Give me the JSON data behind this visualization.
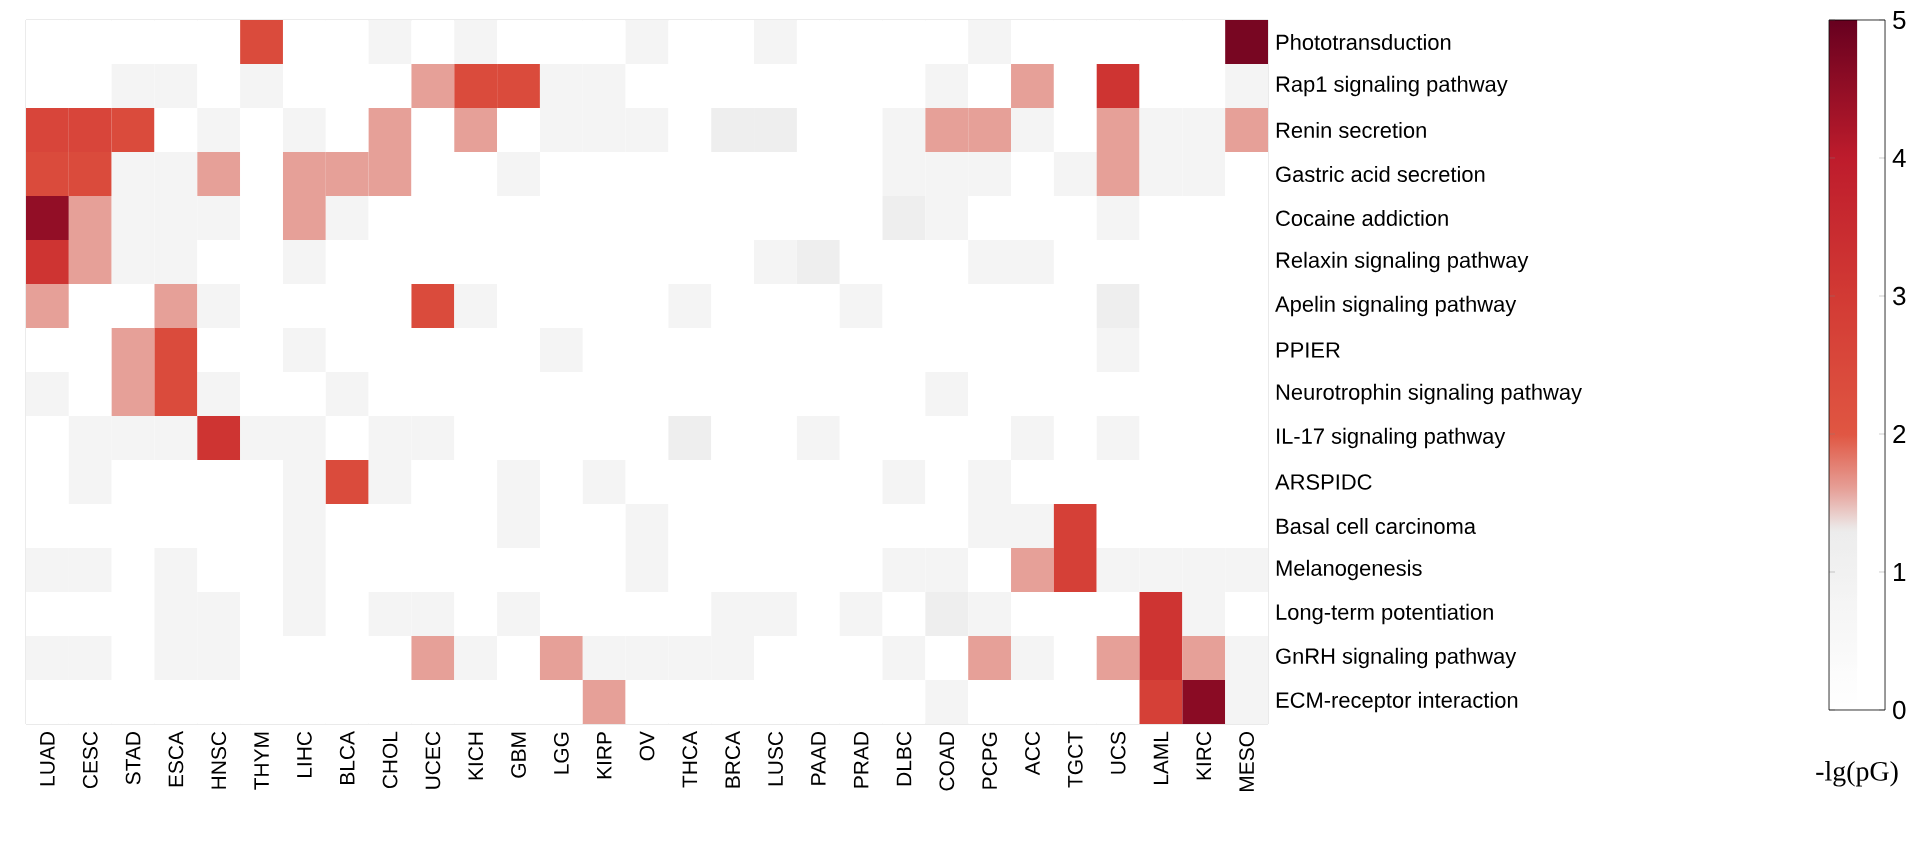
{
  "chart_data": {
    "type": "heatmap",
    "categories": [
      "LUAD",
      "CESC",
      "STAD",
      "ESCA",
      "HNSC",
      "THYM",
      "LIHC",
      "BLCA",
      "CHOL",
      "UCEC",
      "KICH",
      "GBM",
      "LGG",
      "KIRP",
      "OV",
      "THCA",
      "BRCA",
      "LUSC",
      "PAAD",
      "PRAD",
      "DLBC",
      "COAD",
      "PCPG",
      "ACC",
      "TGCT",
      "UCS",
      "LAML",
      "KIRC",
      "MESO"
    ],
    "y_categories": [
      "Phototransduction",
      "Rap1 signaling pathway",
      "Renin secretion",
      "Gastric acid secretion",
      "Cocaine addiction",
      "Relaxin signaling pathway",
      "Apelin signaling pathway",
      "PPIER",
      "Neurotrophin signaling pathway",
      "IL-17 signaling pathway",
      "ARSPIDC",
      "Basal cell carcinoma",
      "Melanogenesis",
      "Long-term potentiation",
      "GnRH signaling pathway",
      "ECM-receptor interaction"
    ],
    "cells": [
      [
        0,
        0,
        0,
        0,
        0,
        2.4,
        0,
        0,
        0.8,
        0,
        0.8,
        0,
        0,
        0,
        0.8,
        0,
        0,
        0.8,
        0,
        0,
        0,
        0,
        0.8,
        0,
        0,
        0,
        0,
        0,
        4.8
      ],
      [
        0,
        0,
        0.8,
        0.8,
        0,
        0.8,
        0,
        0,
        0,
        1.6,
        2.4,
        2.4,
        0.8,
        0.8,
        0,
        0,
        0,
        0,
        0,
        0,
        0,
        0.8,
        0,
        1.6,
        0,
        3.2,
        0,
        0,
        0.8
      ],
      [
        2.6,
        2.6,
        2.4,
        0,
        0.8,
        0,
        0.8,
        0,
        1.6,
        0,
        1.6,
        0,
        0.8,
        0.8,
        0.8,
        0,
        1.2,
        1.2,
        0,
        0,
        0.8,
        1.6,
        1.6,
        0.8,
        0,
        1.6,
        0.8,
        0.8,
        1.6
      ],
      [
        2.4,
        2.4,
        0.8,
        0.8,
        1.6,
        0,
        1.6,
        1.6,
        1.6,
        0,
        0,
        0.8,
        0,
        0,
        0,
        0,
        0,
        0,
        0,
        0,
        0.8,
        0.8,
        0.8,
        0,
        0.8,
        1.6,
        0.8,
        0.8,
        0
      ],
      [
        4.5,
        1.6,
        0.8,
        0.8,
        0.8,
        0,
        1.6,
        0.8,
        0,
        0,
        0,
        0,
        0,
        0,
        0,
        0,
        0,
        0,
        0,
        0,
        1.2,
        0.8,
        0,
        0,
        0,
        0.8,
        0,
        0,
        0
      ],
      [
        3.2,
        1.6,
        0.8,
        0.8,
        0,
        0,
        0.8,
        0,
        0,
        0,
        0,
        0,
        0,
        0,
        0,
        0,
        0,
        0.8,
        1.2,
        0,
        0,
        0,
        0.8,
        0.8,
        0,
        0,
        0,
        0,
        0
      ],
      [
        1.6,
        0,
        0,
        1.6,
        0.8,
        0,
        0,
        0,
        0,
        2.4,
        0.8,
        0,
        0,
        0,
        0,
        0.8,
        0,
        0,
        0,
        0.8,
        0,
        0,
        0,
        0,
        0,
        1.2,
        0,
        0,
        0
      ],
      [
        0,
        0,
        1.6,
        2.4,
        0,
        0,
        0.8,
        0,
        0,
        0,
        0,
        0,
        0.8,
        0,
        0,
        0,
        0,
        0,
        0,
        0,
        0,
        0,
        0,
        0,
        0,
        0.8,
        0,
        0,
        0
      ],
      [
        0.8,
        0,
        1.6,
        2.4,
        0.8,
        0,
        0,
        0.8,
        0,
        0,
        0,
        0,
        0,
        0,
        0,
        0,
        0,
        0,
        0,
        0,
        0,
        0.8,
        0,
        0,
        0,
        0,
        0,
        0,
        0
      ],
      [
        0,
        0.8,
        0.8,
        0.8,
        3.2,
        0.8,
        0.8,
        0,
        0.8,
        0.8,
        0,
        0,
        0,
        0,
        0,
        1.2,
        0,
        0,
        0.8,
        0,
        0,
        0,
        0,
        0.8,
        0,
        0.8,
        0,
        0,
        0
      ],
      [
        0,
        0.8,
        0,
        0,
        0,
        0,
        0.8,
        2.4,
        0.8,
        0,
        0,
        0.8,
        0,
        0.8,
        0,
        0,
        0,
        0,
        0,
        0,
        0.8,
        0,
        0.8,
        0,
        0,
        0,
        0,
        0,
        0
      ],
      [
        0,
        0,
        0,
        0,
        0,
        0,
        0.8,
        0,
        0,
        0,
        0,
        0.8,
        0,
        0,
        0.8,
        0,
        0,
        0,
        0,
        0,
        0,
        0,
        0.8,
        0.8,
        2.8,
        0,
        0,
        0,
        0
      ],
      [
        0.8,
        0.8,
        0,
        0.8,
        0,
        0,
        0.8,
        0,
        0,
        0,
        0,
        0,
        0,
        0,
        0.8,
        0,
        0,
        0,
        0,
        0,
        0.8,
        0.8,
        0,
        1.6,
        2.8,
        0.8,
        0.8,
        0.8,
        0.8
      ],
      [
        0,
        0,
        0,
        0.8,
        0.8,
        0,
        0.8,
        0,
        0.8,
        0.8,
        0,
        0.8,
        0,
        0,
        0,
        0,
        0.8,
        0.8,
        0,
        0.8,
        0,
        1.2,
        0.8,
        0,
        0,
        0,
        3.2,
        0.8,
        0
      ],
      [
        0.8,
        0.8,
        0,
        0.8,
        0.8,
        0,
        0,
        0,
        0,
        1.6,
        0.8,
        0,
        1.6,
        0.8,
        0.8,
        0.8,
        0.8,
        0,
        0,
        0,
        0.8,
        0,
        1.6,
        0.8,
        0,
        1.6,
        3.2,
        1.6,
        0.8
      ],
      [
        0,
        0,
        0,
        0,
        0,
        0,
        0,
        0,
        0,
        0,
        0,
        0,
        0,
        1.6,
        0,
        0,
        0,
        0,
        0,
        0,
        0,
        0.8,
        0,
        0,
        0,
        0,
        2.8,
        4.6,
        0.8
      ]
    ],
    "clim": [
      0,
      5
    ],
    "cticks": [
      0,
      1,
      2,
      3,
      4,
      5
    ],
    "clabel": "-lg(pG)"
  }
}
